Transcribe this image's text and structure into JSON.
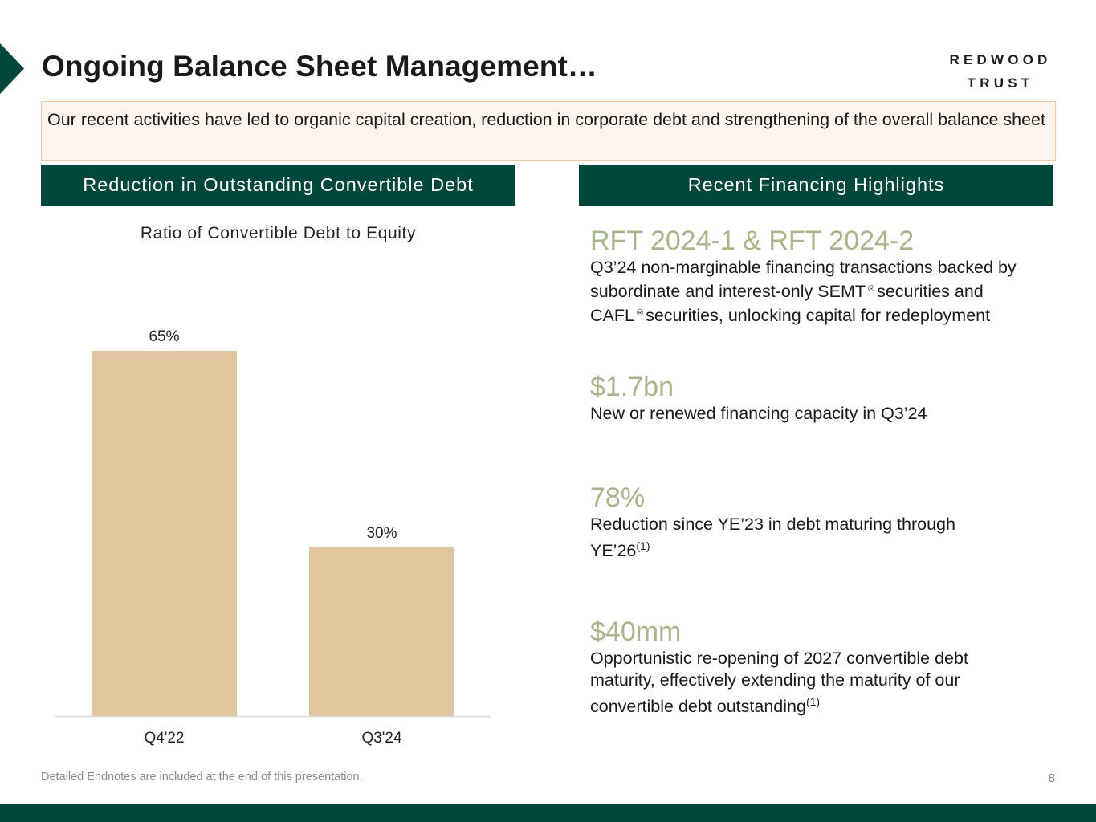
{
  "slide": {
    "title": "Ongoing Balance Sheet Management…",
    "page_number": "8",
    "footnote": "Detailed Endnotes are included at the end of this presentation."
  },
  "logo": {
    "line1": "REDWOOD",
    "line2": "TRUST"
  },
  "banner": {
    "text": "Our recent activities have led to organic capital creation, reduction in corporate debt and strengthening of the overall balance sheet"
  },
  "left_section": {
    "header": "Reduction in Outstanding Convertible Debt"
  },
  "right_section": {
    "header": "Recent Financing Highlights",
    "items": [
      {
        "headline": "RFT 2024-1 & RFT 2024-2",
        "text_a": "Q3’24 non-marginable financing transactions backed by subordinate and interest-only SEMT",
        "reg_a": "®",
        "text_b": "securities and CAFL",
        "reg_b": "®",
        "text_c": "securities, unlocking capital for redeployment"
      },
      {
        "headline": "$1.7bn",
        "text": "New or renewed financing capacity in Q3’24"
      },
      {
        "headline": "78%",
        "text": "Reduction since YE’23 in debt maturing through YE’26",
        "footnote_ref": "(1)"
      },
      {
        "headline": "$40mm",
        "text": "Opportunistic re-opening of 2027 convertible debt maturity, effectively extending the maturity of our convertible debt outstanding",
        "footnote_ref": "(1)"
      }
    ]
  },
  "colors": {
    "brand_green": "#00473b",
    "bar_tan": "#e0c69e",
    "highlight_sage": "#a8b58b",
    "banner_bg": "#fef5ee",
    "banner_border": "#f1c6a6"
  },
  "chart_data": {
    "type": "bar",
    "title": "Ratio of Convertible Debt to Equity",
    "categories": [
      "Q4'22",
      "Q3'24"
    ],
    "values": [
      65,
      30
    ],
    "value_labels": [
      "65%",
      "30%"
    ],
    "xlabel": "",
    "ylabel": "",
    "ylim": [
      0,
      80
    ],
    "grid": false,
    "legend": "none"
  }
}
